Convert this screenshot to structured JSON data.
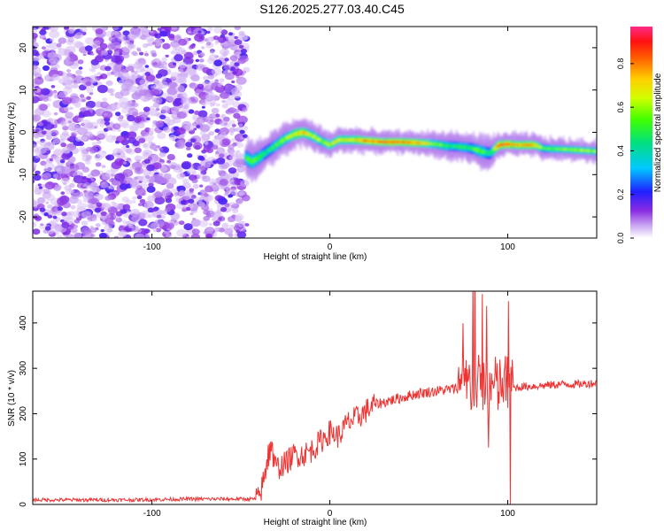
{
  "title": "S126.2025.277.03.40.C45",
  "chart_data": [
    {
      "type": "heatmap",
      "xlabel": "Height of straight line (km)",
      "ylabel": "Frequency (Hz)",
      "xlim": [
        -167,
        150
      ],
      "ylim": [
        -25,
        25
      ],
      "xticks": [
        -100,
        0,
        100
      ],
      "yticks": [
        -20,
        -10,
        0,
        10,
        20
      ],
      "noise_region_x": [
        -167,
        -48
      ],
      "ridge": {
        "x": [
          -47,
          -44,
          -40,
          -35,
          -30,
          -25,
          -20,
          -15,
          -10,
          -5,
          0,
          5,
          10,
          15,
          20,
          30,
          40,
          50,
          60,
          65,
          70,
          75,
          80,
          85,
          90,
          95,
          100,
          105,
          110,
          115,
          120,
          130,
          140,
          150
        ],
        "freq": [
          -6,
          -7,
          -6,
          -4.5,
          -3,
          -1.5,
          -0.5,
          0,
          -0.8,
          -2,
          -3,
          -1.8,
          -1.8,
          -1.8,
          -2,
          -2.3,
          -2.3,
          -2.5,
          -2.8,
          -3.2,
          -3.3,
          -3.5,
          -3.8,
          -4.5,
          -5,
          -3,
          -2.8,
          -3,
          -3,
          -3,
          -3.8,
          -4,
          -4.2,
          -4.5
        ],
        "amplitude": [
          0.5,
          0.6,
          0.55,
          0.45,
          0.55,
          0.6,
          0.7,
          0.8,
          0.65,
          0.6,
          0.65,
          0.7,
          0.7,
          0.75,
          0.85,
          0.9,
          0.9,
          0.8,
          0.6,
          0.55,
          0.5,
          0.55,
          0.5,
          0.6,
          0.45,
          0.85,
          0.9,
          0.8,
          0.85,
          0.8,
          0.55,
          0.6,
          0.65,
          0.6
        ],
        "width_hz": [
          3.5,
          3.5,
          3.2,
          3,
          2.8,
          2.8,
          2.6,
          2.5,
          2.6,
          2.4,
          2.2,
          2.2,
          2.2,
          2.2,
          2,
          1.9,
          1.9,
          2,
          2.2,
          2.4,
          2.4,
          2.4,
          2.6,
          3,
          2.8,
          2.2,
          2,
          2,
          2,
          2,
          2,
          1.9,
          1.9,
          1.9
        ]
      },
      "colorbar": {
        "label": "Normalized spectral amplitude",
        "ticks": [
          0.0,
          0.2,
          0.4,
          0.6,
          0.8
        ],
        "range": [
          0,
          0.97
        ]
      }
    },
    {
      "type": "line",
      "xlabel": "Height of straight line (km)",
      "ylabel": "SNR (10 * v/v)",
      "xlim": [
        -167,
        150
      ],
      "ylim": [
        0,
        470
      ],
      "xticks": [
        -100,
        0,
        100
      ],
      "yticks": [
        0,
        100,
        200,
        300,
        400
      ],
      "series": [
        {
          "name": "SNR",
          "color": "#ee3333",
          "x": [
            -167,
            -140,
            -110,
            -80,
            -50,
            -40,
            -38,
            -35,
            -33,
            -30,
            -25,
            -20,
            -15,
            -10,
            -5,
            0,
            5,
            10,
            15,
            20,
            25,
            30,
            40,
            50,
            60,
            70,
            75,
            80,
            85,
            90,
            95,
            100,
            102,
            105,
            110,
            120,
            130,
            140,
            150
          ],
          "values": [
            10,
            10,
            10,
            12,
            12,
            12,
            40,
            90,
            100,
            80,
            90,
            110,
            110,
            120,
            140,
            160,
            150,
            180,
            190,
            205,
            220,
            225,
            235,
            245,
            250,
            255,
            260,
            262,
            262,
            258,
            260,
            265,
            255,
            258,
            260,
            262,
            265,
            265,
            268
          ]
        }
      ]
    }
  ]
}
